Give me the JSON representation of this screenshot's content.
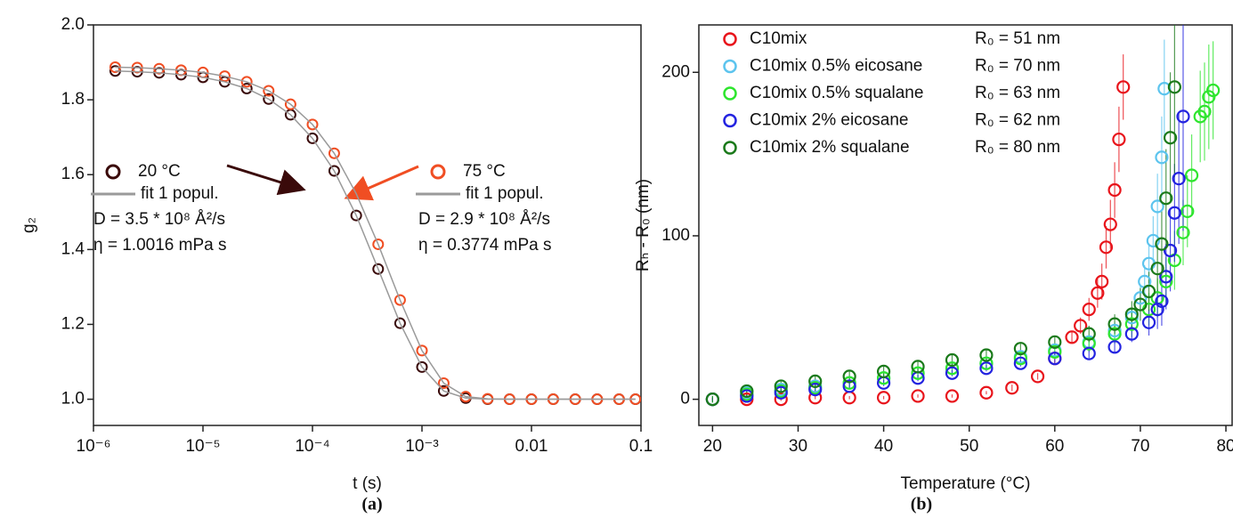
{
  "chart_data": [
    {
      "type": "scatter",
      "caption": "(a)",
      "x_label": "t (s)",
      "y_label": "g₂",
      "log_x": true,
      "xlim": [
        1e-06,
        0.1
      ],
      "xticks": [
        {
          "value": 1e-06,
          "label": "10⁻⁶"
        },
        {
          "value": 1e-05,
          "label": "10⁻⁵"
        },
        {
          "value": 0.0001,
          "label": "10⁻⁴"
        },
        {
          "value": 0.001,
          "label": "10⁻³"
        },
        0.01,
        0.1
      ],
      "ylim": [
        0.93,
        2.0
      ],
      "yticks": [
        {
          "value": 1,
          "label": "1.0"
        },
        1.2,
        1.4,
        1.6,
        1.8,
        {
          "value": 2,
          "label": "2.0"
        }
      ],
      "x": [
        1.58e-06,
        2.51e-06,
        3.98e-06,
        6.31e-06,
        1e-05,
        1.58e-05,
        2.51e-05,
        3.98e-05,
        6.31e-05,
        0.0001,
        0.000158,
        0.000251,
        0.000398,
        0.000631,
        0.001,
        0.00158,
        0.00251,
        0.00398,
        0.00631,
        0.01,
        0.0158,
        0.0251,
        0.0398,
        0.0631,
        0.089
      ],
      "series": [
        {
          "name": "20 °C",
          "color": "#3a0a0a",
          "values": [
            1.877,
            1.875,
            1.872,
            1.867,
            1.86,
            1.848,
            1.83,
            1.802,
            1.76,
            1.697,
            1.61,
            1.491,
            1.348,
            1.203,
            1.086,
            1.022,
            1.003,
            1.0,
            1.0,
            1.0,
            1.0,
            1.0,
            1.0,
            1.0,
            1.0
          ],
          "fit": {
            "name": "fit 1 popul.",
            "color": "#9a9a9a"
          },
          "annotations": [
            "D = 3.5 * 10⁸ Å²/s",
            "η = 1.0016 mPa s"
          ]
        },
        {
          "name": "75 °C",
          "color": "#f04e23",
          "values": [
            1.887,
            1.886,
            1.883,
            1.879,
            1.873,
            1.863,
            1.848,
            1.824,
            1.788,
            1.734,
            1.657,
            1.549,
            1.414,
            1.265,
            1.13,
            1.043,
            1.007,
            1.001,
            1.0,
            1.0,
            1.0,
            1.0,
            1.0,
            1.0,
            1.0
          ],
          "fit": {
            "name": "fit 1 popul.",
            "color": "#9a9a9a"
          },
          "annotations": [
            "D = 2.9 * 10⁸ Å²/s",
            "η = 0.3774 mPa s"
          ]
        }
      ]
    },
    {
      "type": "scatter",
      "caption": "(b)",
      "x_label": "Temperature (°C)",
      "y_label": "Rₕ - R₀ (nm)",
      "log_x": false,
      "xlim": [
        18.4,
        80.1
      ],
      "xticks": [
        20,
        30,
        40,
        50,
        60,
        70,
        80
      ],
      "ylim": [
        -16,
        229
      ],
      "yticks": [
        0,
        100,
        200
      ],
      "series": [
        {
          "name": "C10mix",
          "r0_label": "R₀ = 51 nm",
          "color": "#e8141b",
          "x": [
            20,
            24,
            28,
            32,
            36,
            40,
            44,
            48,
            52,
            55,
            58,
            60,
            62,
            63,
            64,
            65,
            65.5,
            66,
            66.5,
            67,
            67.5,
            68
          ],
          "values": [
            0,
            0,
            0,
            1,
            1,
            1,
            2,
            2,
            4,
            7,
            14,
            25,
            38,
            45,
            55,
            65,
            72,
            93,
            107,
            128,
            159,
            191
          ],
          "errors": [
            1,
            1,
            1,
            1,
            1,
            1,
            1,
            1,
            1,
            2,
            2,
            3,
            4,
            5,
            7,
            9,
            11,
            13,
            15,
            17,
            20,
            20
          ]
        },
        {
          "name": "C10mix 0.5% eicosane",
          "r0_label": "R₀ = 70 nm",
          "color": "#5cc4ee",
          "x": [
            20,
            24,
            28,
            32,
            36,
            40,
            44,
            48,
            52,
            56,
            60,
            64,
            67,
            69,
            70,
            70.5,
            71,
            71.5,
            72,
            72.5,
            72.8
          ],
          "values": [
            0,
            4,
            6,
            8,
            10,
            13,
            16,
            19,
            22,
            26,
            30,
            35,
            42,
            50,
            62,
            72,
            83,
            97,
            118,
            148,
            190
          ],
          "errors": [
            2,
            3,
            3,
            3,
            3,
            3,
            3,
            3,
            3,
            3,
            3,
            4,
            5,
            6,
            8,
            10,
            12,
            15,
            20,
            25,
            30
          ]
        },
        {
          "name": "C10mix 0.5% squalane",
          "r0_label": "R₀ = 63 nm",
          "color": "#2ee52e",
          "x": [
            20,
            24,
            28,
            32,
            36,
            40,
            44,
            48,
            52,
            56,
            60,
            64,
            67,
            69,
            71,
            72,
            73,
            74,
            75,
            75.5,
            76,
            77,
            77.5,
            78,
            78.5
          ],
          "values": [
            0,
            3,
            5,
            7,
            10,
            13,
            16,
            19,
            22,
            25,
            29,
            34,
            40,
            46,
            55,
            62,
            72,
            85,
            102,
            115,
            137,
            173,
            176,
            185,
            189
          ],
          "errors": [
            2,
            2,
            3,
            3,
            3,
            3,
            3,
            3,
            3,
            3,
            4,
            5,
            6,
            8,
            10,
            12,
            15,
            18,
            20,
            22,
            25,
            28,
            30,
            32,
            30
          ]
        },
        {
          "name": "C10mix 2% eicosane",
          "r0_label": "R₀ = 62 nm",
          "color": "#2323e0",
          "x": [
            20,
            24,
            28,
            32,
            36,
            40,
            44,
            48,
            52,
            56,
            60,
            64,
            67,
            69,
            71,
            72,
            72.5,
            73,
            73.5,
            74,
            74.5,
            75
          ],
          "values": [
            0,
            2,
            4,
            6,
            8,
            10,
            13,
            16,
            19,
            22,
            25,
            28,
            32,
            40,
            47,
            55,
            60,
            75,
            91,
            114,
            135,
            173
          ],
          "errors": [
            1,
            2,
            2,
            2,
            2,
            2,
            2,
            2,
            2,
            2,
            3,
            3,
            4,
            5,
            8,
            12,
            15,
            20,
            25,
            30,
            40,
            70
          ]
        },
        {
          "name": "C10mix 2% squalane",
          "r0_label": "R₀ = 80 nm",
          "color": "#1b7a1b",
          "x": [
            20,
            24,
            28,
            32,
            36,
            40,
            44,
            48,
            52,
            56,
            60,
            64,
            67,
            69,
            70,
            71,
            72,
            72.5,
            73,
            73.5,
            74
          ],
          "values": [
            0,
            5,
            8,
            11,
            14,
            17,
            20,
            24,
            27,
            31,
            35,
            40,
            46,
            52,
            58,
            66,
            80,
            95,
            123,
            160,
            191
          ],
          "errors": [
            2,
            3,
            3,
            3,
            3,
            3,
            3,
            3,
            3,
            3,
            4,
            5,
            6,
            8,
            10,
            12,
            15,
            20,
            30,
            40,
            55
          ]
        }
      ]
    }
  ]
}
